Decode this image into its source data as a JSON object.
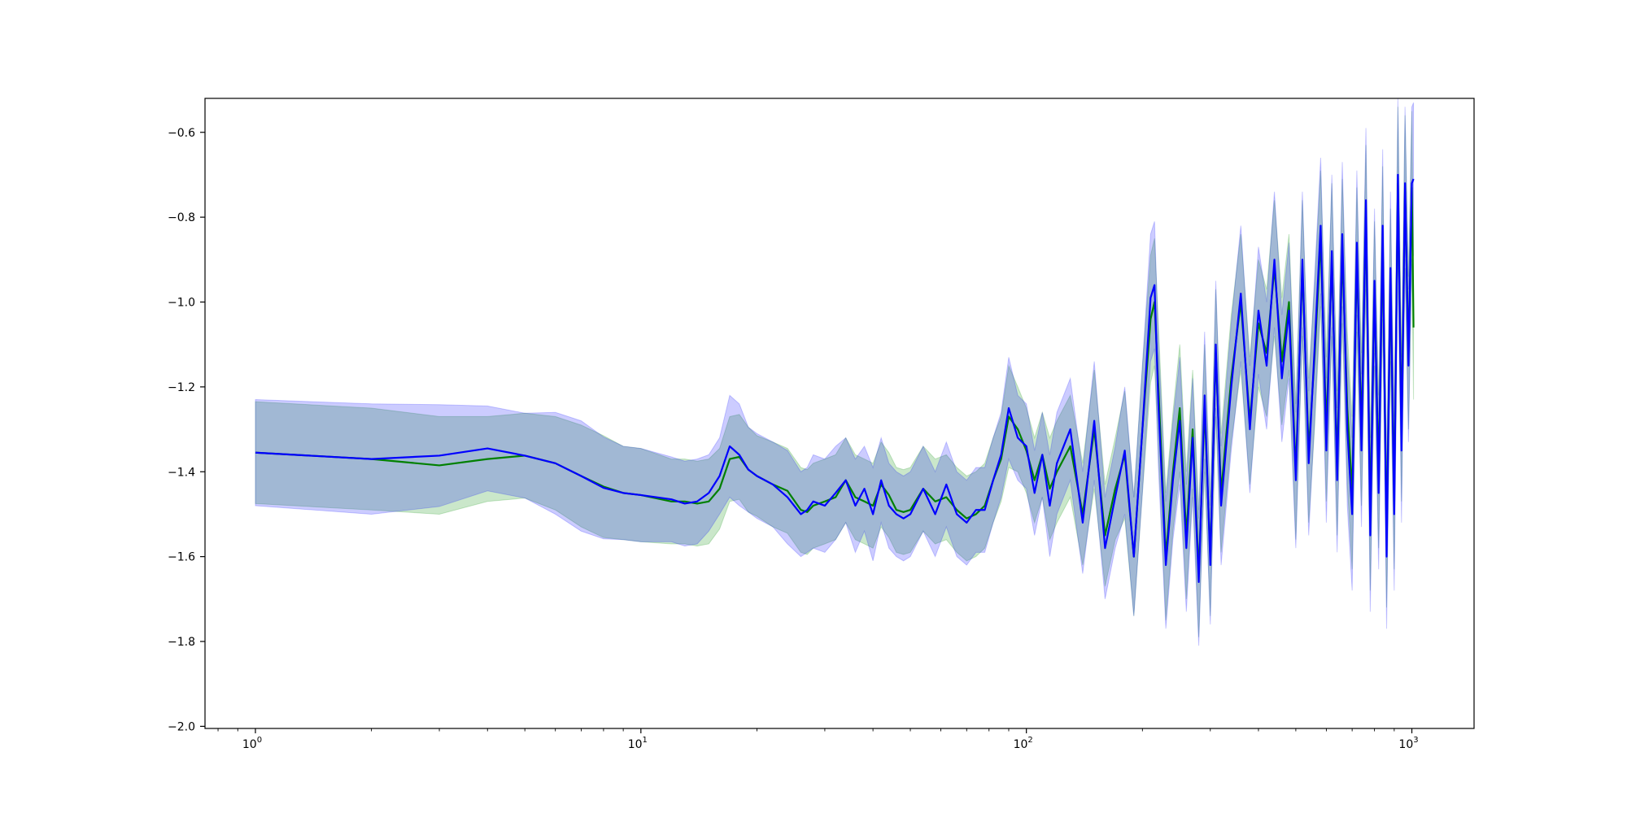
{
  "chart_data": {
    "type": "line",
    "title": "",
    "xlabel": "",
    "ylabel": "",
    "x_scale": "log",
    "xlim": [
      0.74,
      1450
    ],
    "ylim": [
      -2.005,
      -0.52
    ],
    "grid": false,
    "legend": "none",
    "x_ticks": [
      {
        "value": 1,
        "base": "10",
        "exp": "0"
      },
      {
        "value": 10,
        "base": "10",
        "exp": "1"
      },
      {
        "value": 100,
        "base": "10",
        "exp": "2"
      },
      {
        "value": 1000,
        "base": "10",
        "exp": "3"
      }
    ],
    "y_ticks": [
      {
        "value": -0.6,
        "label": "−0.6"
      },
      {
        "value": -0.8,
        "label": "−0.8"
      },
      {
        "value": -1.0,
        "label": "−1.0"
      },
      {
        "value": -1.2,
        "label": "−1.2"
      },
      {
        "value": -1.4,
        "label": "−1.4"
      },
      {
        "value": -1.6,
        "label": "−1.6"
      },
      {
        "value": -1.8,
        "label": "−1.8"
      },
      {
        "value": -2.0,
        "label": "−2.0"
      }
    ],
    "series": [
      {
        "color": "#008000",
        "band_color": "#2ca02c",
        "band_opacity": 0.25,
        "x": [
          1,
          2,
          3,
          4,
          5,
          6,
          7,
          8,
          9,
          10,
          12,
          13,
          14,
          15,
          16,
          17,
          18,
          19,
          20,
          22,
          24,
          26,
          27,
          28,
          30,
          32,
          34,
          36,
          38,
          40,
          42,
          44,
          46,
          48,
          50,
          54,
          58,
          62,
          66,
          70,
          74,
          78,
          82,
          86,
          90,
          95,
          100,
          105,
          110,
          115,
          120,
          130,
          140,
          150,
          160,
          170,
          180,
          190,
          200,
          210,
          215,
          220,
          230,
          240,
          250,
          260,
          270,
          280,
          290,
          300,
          310,
          320,
          340,
          360,
          380,
          400,
          420,
          440,
          460,
          480,
          500,
          520,
          540,
          560,
          580,
          600,
          620,
          640,
          660,
          680,
          700,
          720,
          740,
          760,
          780,
          800,
          820,
          840,
          860,
          880,
          900,
          920,
          940,
          960,
          980,
          1000,
          1010
        ],
        "y": [
          -1.355,
          -1.37,
          -1.385,
          -1.37,
          -1.362,
          -1.38,
          -1.41,
          -1.435,
          -1.45,
          -1.455,
          -1.47,
          -1.47,
          -1.475,
          -1.47,
          -1.44,
          -1.37,
          -1.365,
          -1.395,
          -1.41,
          -1.43,
          -1.445,
          -1.49,
          -1.495,
          -1.48,
          -1.47,
          -1.46,
          -1.42,
          -1.46,
          -1.47,
          -1.48,
          -1.43,
          -1.455,
          -1.49,
          -1.495,
          -1.49,
          -1.44,
          -1.47,
          -1.46,
          -1.49,
          -1.51,
          -1.5,
          -1.48,
          -1.42,
          -1.37,
          -1.27,
          -1.3,
          -1.35,
          -1.42,
          -1.36,
          -1.44,
          -1.4,
          -1.34,
          -1.5,
          -1.3,
          -1.55,
          -1.44,
          -1.36,
          -1.6,
          -1.3,
          -1.04,
          -1.0,
          -1.2,
          -1.6,
          -1.4,
          -1.25,
          -1.55,
          -1.3,
          -1.64,
          -1.25,
          -1.6,
          -1.12,
          -1.45,
          -1.18,
          -1.0,
          -1.28,
          -1.05,
          -1.12,
          -0.92,
          -1.14,
          -1.0,
          -1.4,
          -0.92,
          -1.35,
          -1.12,
          -0.85,
          -1.3,
          -0.9,
          -1.38,
          -0.88,
          -1.25,
          -1.45,
          -0.9,
          -1.3,
          -0.8,
          -1.5,
          -0.98,
          -1.4,
          -0.86,
          -1.55,
          -0.96,
          -1.45,
          -0.72,
          -1.3,
          -0.74,
          -1.12,
          -0.73,
          -1.06
        ],
        "err": [
          0.12,
          0.12,
          0.115,
          0.1,
          0.1,
          0.11,
          0.12,
          0.12,
          0.11,
          0.11,
          0.1,
          0.1,
          0.1,
          0.1,
          0.095,
          0.1,
          0.1,
          0.1,
          0.095,
          0.1,
          0.1,
          0.1,
          0.1,
          0.1,
          0.1,
          0.1,
          0.1,
          0.1,
          0.1,
          0.1,
          0.1,
          0.1,
          0.1,
          0.1,
          0.1,
          0.1,
          0.1,
          0.1,
          0.1,
          0.1,
          0.1,
          0.1,
          0.1,
          0.1,
          0.12,
          0.1,
          0.1,
          0.1,
          0.1,
          0.12,
          0.12,
          0.12,
          0.12,
          0.14,
          0.12,
          0.12,
          0.15,
          0.14,
          0.15,
          0.15,
          0.15,
          0.15,
          0.15,
          0.14,
          0.15,
          0.15,
          0.14,
          0.15,
          0.15,
          0.14,
          0.15,
          0.14,
          0.15,
          0.16,
          0.15,
          0.15,
          0.15,
          0.16,
          0.15,
          0.16,
          0.16,
          0.16,
          0.17,
          0.17,
          0.16,
          0.17,
          0.18,
          0.17,
          0.17,
          0.18,
          0.18,
          0.17,
          0.18,
          0.17,
          0.18,
          0.17,
          0.18,
          0.18,
          0.17,
          0.18,
          0.18,
          0.18,
          0.17,
          0.18,
          0.18,
          0.18,
          0.17
        ]
      },
      {
        "color": "#0000ff",
        "band_color": "#0000ff",
        "band_opacity": 0.2,
        "x": [
          1,
          2,
          3,
          4,
          5,
          6,
          7,
          8,
          9,
          10,
          12,
          13,
          14,
          15,
          16,
          17,
          18,
          19,
          20,
          22,
          24,
          26,
          27,
          28,
          30,
          32,
          34,
          36,
          38,
          40,
          42,
          44,
          46,
          48,
          50,
          54,
          58,
          62,
          66,
          70,
          74,
          78,
          82,
          86,
          90,
          95,
          100,
          105,
          110,
          115,
          120,
          130,
          140,
          150,
          160,
          170,
          180,
          190,
          200,
          210,
          215,
          220,
          230,
          240,
          250,
          260,
          270,
          280,
          290,
          300,
          310,
          320,
          340,
          360,
          380,
          400,
          420,
          440,
          460,
          480,
          500,
          520,
          540,
          560,
          580,
          600,
          620,
          640,
          660,
          680,
          700,
          720,
          740,
          760,
          780,
          800,
          820,
          840,
          860,
          880,
          900,
          920,
          940,
          960,
          980,
          1000,
          1010
        ],
        "y": [
          -1.355,
          -1.37,
          -1.362,
          -1.345,
          -1.362,
          -1.38,
          -1.41,
          -1.438,
          -1.45,
          -1.455,
          -1.465,
          -1.475,
          -1.47,
          -1.45,
          -1.41,
          -1.34,
          -1.36,
          -1.395,
          -1.41,
          -1.43,
          -1.46,
          -1.5,
          -1.49,
          -1.47,
          -1.48,
          -1.45,
          -1.42,
          -1.48,
          -1.44,
          -1.5,
          -1.42,
          -1.48,
          -1.5,
          -1.51,
          -1.5,
          -1.44,
          -1.5,
          -1.43,
          -1.5,
          -1.52,
          -1.49,
          -1.49,
          -1.42,
          -1.36,
          -1.25,
          -1.32,
          -1.34,
          -1.45,
          -1.36,
          -1.48,
          -1.38,
          -1.3,
          -1.52,
          -1.28,
          -1.58,
          -1.46,
          -1.35,
          -1.6,
          -1.3,
          -0.99,
          -0.96,
          -1.24,
          -1.62,
          -1.42,
          -1.28,
          -1.58,
          -1.32,
          -1.66,
          -1.22,
          -1.62,
          -1.1,
          -1.48,
          -1.2,
          -0.98,
          -1.3,
          -1.02,
          -1.15,
          -0.9,
          -1.18,
          -1.02,
          -1.42,
          -0.9,
          -1.38,
          -1.1,
          -0.82,
          -1.35,
          -0.88,
          -1.42,
          -0.84,
          -1.3,
          -1.5,
          -0.86,
          -1.35,
          -0.76,
          -1.55,
          -0.95,
          -1.45,
          -0.82,
          -1.6,
          -0.92,
          -1.5,
          -0.7,
          -1.35,
          -0.72,
          -1.15,
          -0.72,
          -0.71
        ],
        "err": [
          0.125,
          0.13,
          0.12,
          0.1,
          0.1,
          0.12,
          0.13,
          0.12,
          0.11,
          0.11,
          0.1,
          0.1,
          0.1,
          0.09,
          0.09,
          0.12,
          0.12,
          0.1,
          0.1,
          0.1,
          0.11,
          0.1,
          0.1,
          0.11,
          0.11,
          0.11,
          0.1,
          0.11,
          0.1,
          0.11,
          0.1,
          0.1,
          0.1,
          0.1,
          0.1,
          0.1,
          0.1,
          0.1,
          0.1,
          0.1,
          0.1,
          0.1,
          0.1,
          0.1,
          0.12,
          0.1,
          0.1,
          0.1,
          0.1,
          0.12,
          0.12,
          0.12,
          0.12,
          0.14,
          0.12,
          0.12,
          0.15,
          0.14,
          0.15,
          0.15,
          0.15,
          0.15,
          0.15,
          0.14,
          0.15,
          0.15,
          0.14,
          0.15,
          0.15,
          0.14,
          0.15,
          0.14,
          0.15,
          0.16,
          0.15,
          0.15,
          0.15,
          0.16,
          0.15,
          0.16,
          0.16,
          0.16,
          0.17,
          0.17,
          0.16,
          0.17,
          0.18,
          0.17,
          0.17,
          0.18,
          0.18,
          0.17,
          0.18,
          0.17,
          0.18,
          0.17,
          0.18,
          0.18,
          0.17,
          0.18,
          0.18,
          0.18,
          0.17,
          0.18,
          0.18,
          0.18,
          0.18
        ]
      }
    ]
  }
}
